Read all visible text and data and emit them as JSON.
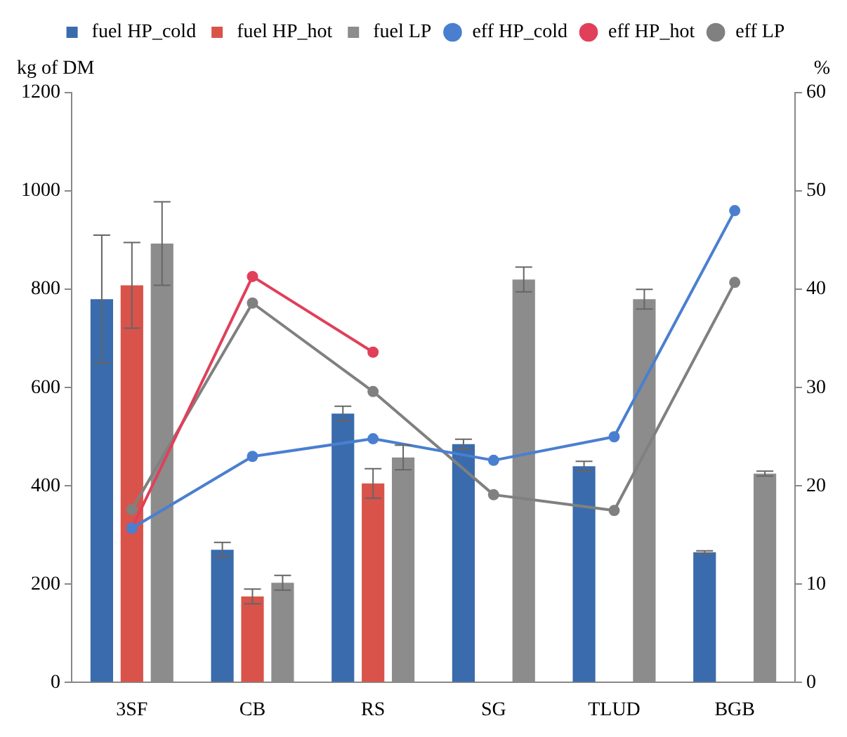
{
  "chart_data": {
    "type": "bar",
    "ylabel": "kg of DM",
    "y2label": "%",
    "categories": [
      "3SF",
      "CB",
      "RS",
      "SG",
      "TLUD",
      "BGB"
    ],
    "series": [
      {
        "name": "fuel HP_cold",
        "color": "#3a6bac",
        "values": [
          780,
          270,
          547,
          485,
          440,
          265
        ],
        "errors": [
          130,
          15,
          15,
          10,
          10,
          3
        ]
      },
      {
        "name": "fuel HP_hot",
        "color": "#d9534a",
        "values": [
          808,
          175,
          405,
          null,
          null,
          null
        ],
        "errors": [
          87,
          15,
          30,
          null,
          null,
          null
        ]
      },
      {
        "name": "fuel LP",
        "color": "#8c8c8c",
        "values": [
          893,
          203,
          458,
          820,
          780,
          425
        ],
        "errors": [
          85,
          15,
          25,
          25,
          20,
          5
        ]
      },
      {
        "name": "eff HP_cold",
        "type": "line",
        "axis": "y2",
        "color": "#4a7fd0",
        "values": [
          15.7,
          23.0,
          24.8,
          22.6,
          25.0,
          48.0
        ]
      },
      {
        "name": "eff HP_hot",
        "type": "line",
        "axis": "y2",
        "color": "#e0405a",
        "values": [
          15.7,
          41.3,
          33.6,
          null,
          null,
          null
        ]
      },
      {
        "name": "eff LP",
        "type": "line",
        "axis": "y2",
        "color": "#808080",
        "values": [
          17.6,
          38.6,
          29.6,
          19.1,
          17.5,
          40.7
        ]
      }
    ],
    "ylim": [
      0,
      1200
    ],
    "yticks": [
      0,
      200,
      400,
      600,
      800,
      1000,
      1200
    ],
    "y2lim": [
      0,
      60
    ],
    "y2ticks": [
      0,
      10,
      20,
      30,
      40,
      50,
      60
    ],
    "grid": false,
    "legend": "top",
    "marker": "circle",
    "line_style": "solid"
  }
}
